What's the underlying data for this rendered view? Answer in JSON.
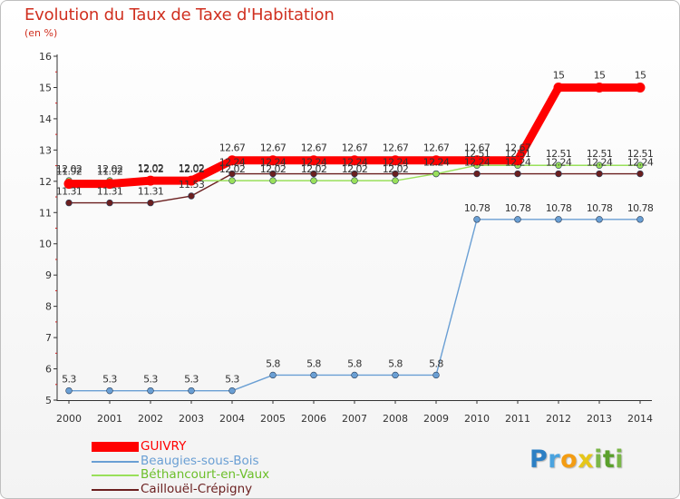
{
  "title": "Evolution du Taux de Taxe d'Habitation",
  "subtitle": "(en %)",
  "logo": {
    "text": "Proxiti",
    "letters": [
      {
        "ch": "P",
        "color": "#2c7fc4"
      },
      {
        "ch": "r",
        "color": "#4aa3df"
      },
      {
        "ch": "o",
        "color": "#f39c12"
      },
      {
        "ch": "x",
        "color": "#e6c619"
      },
      {
        "ch": "i",
        "color": "#7ab648"
      },
      {
        "ch": "t",
        "color": "#5aa02c"
      },
      {
        "ch": "i",
        "color": "#7ab648"
      }
    ]
  },
  "chart_data": {
    "type": "line",
    "title": "Evolution du Taux de Taxe d'Habitation",
    "ylabel": "(en %)",
    "xlabel": "",
    "x": [
      "2000",
      "2001",
      "2002",
      "2003",
      "2004",
      "2005",
      "2006",
      "2007",
      "2008",
      "2009",
      "2010",
      "2011",
      "2012",
      "2013",
      "2014"
    ],
    "ylim": [
      5,
      16
    ],
    "yticks": [
      5,
      6,
      7,
      8,
      9,
      10,
      11,
      12,
      13,
      14,
      15,
      16
    ],
    "grid": false,
    "legend": "bottom-left",
    "series": [
      {
        "name": "Caillouël-Crépigny",
        "color": "#6b1f1f",
        "values": [
          11.31,
          11.31,
          11.31,
          11.53,
          12.24,
          12.24,
          12.24,
          12.24,
          12.24,
          12.24,
          12.24,
          12.24,
          12.24,
          12.24,
          12.24
        ],
        "labels": [
          "11.31",
          "11.31",
          "11.31",
          "11.53",
          "12.24",
          "12.24",
          "12.24",
          "12.24",
          "12.24",
          "12.24",
          "12.24",
          "12.24",
          "12.24",
          "12.24",
          "12.24"
        ]
      },
      {
        "name": "Béthancourt-en-Vaux",
        "color": "#99e05a",
        "values": [
          12.02,
          12.02,
          12.02,
          12.02,
          12.02,
          12.02,
          12.02,
          12.02,
          12.02,
          12.24,
          12.51,
          12.51,
          12.51,
          12.51,
          12.51
        ],
        "labels": [
          "12.02",
          "12.02",
          "12.02",
          "12.02",
          "12.02",
          "12.02",
          "12.02",
          "12.02",
          "12.02",
          "12.24",
          "12.51",
          "12.51",
          "12.51",
          "12.51",
          "12.51"
        ]
      },
      {
        "name": "Beaugies-sous-Bois",
        "color": "#6a9fd4",
        "values": [
          5.3,
          5.3,
          5.3,
          5.3,
          5.3,
          5.8,
          5.8,
          5.8,
          5.8,
          5.8,
          10.78,
          10.78,
          10.78,
          10.78,
          10.78
        ],
        "labels": [
          "5.3",
          "5.3",
          "5.3",
          "5.3",
          "5.3",
          "5.8",
          "5.8",
          "5.8",
          "5.8",
          "5.8",
          "10.78",
          "10.78",
          "10.78",
          "10.78",
          "10.78"
        ]
      },
      {
        "name": "GUIVRY",
        "color": "#ff0000",
        "values": [
          11.92,
          11.92,
          12.02,
          12.02,
          12.67,
          12.67,
          12.67,
          12.67,
          12.67,
          12.67,
          12.67,
          12.67,
          15,
          15,
          15
        ],
        "labels": [
          "11.92",
          "11.92",
          "12.02",
          "12.02",
          "12.67",
          "12.67",
          "12.67",
          "12.67",
          "12.67",
          "12.67",
          "12.67",
          "12.67",
          "15",
          "15",
          "15"
        ]
      }
    ]
  },
  "legend_items": [
    {
      "label": "GUIVRY",
      "color": "#ff0000"
    },
    {
      "label": "Beaugies-sous-Bois",
      "color": "#6a9fd4"
    },
    {
      "label": "Béthancourt-en-Vaux",
      "color": "#99e05a"
    },
    {
      "label": "Caillouël-Crépigny",
      "color": "#6b1f1f"
    }
  ]
}
